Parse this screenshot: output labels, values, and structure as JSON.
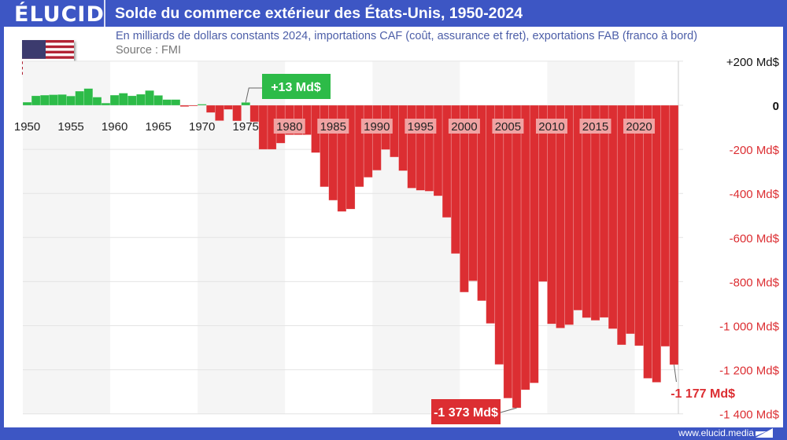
{
  "header": {
    "logo": "ÉLUCID",
    "title": "Solde du commerce extérieur des États-Unis, 1950-2024"
  },
  "subtitle": "En milliards de dollars constants 2024, importations CAF (coût, assurance et fret), exportations FAB (franco à bord)",
  "source": "Source : FMI",
  "footer": {
    "url": "www.elucid.media"
  },
  "colors": {
    "frame": "#3d56c4",
    "positive": "#2dbb48",
    "negative": "#dc2e32",
    "band": "#f5f5f5"
  },
  "flag_icon": "us-flag",
  "chart_data": {
    "type": "bar",
    "title": "Solde du commerce extérieur des États-Unis, 1950-2024",
    "xlabel": "",
    "ylabel": "",
    "ylim": [
      -1400,
      200
    ],
    "grid": true,
    "y_ticks": [
      {
        "value": 200,
        "label": "+200 Md$"
      },
      {
        "value": 0,
        "label": "0"
      },
      {
        "value": -200,
        "label": "-200 Md$"
      },
      {
        "value": -400,
        "label": "-400 Md$"
      },
      {
        "value": -600,
        "label": "-600 Md$"
      },
      {
        "value": -800,
        "label": "-800 Md$"
      },
      {
        "value": -1000,
        "label": "-1 000 Md$"
      },
      {
        "value": -1200,
        "label": "-1 200 Md$"
      },
      {
        "value": -1400,
        "label": "-1 400 Md$"
      }
    ],
    "x_ticks": [
      "1950",
      "1955",
      "1960",
      "1965",
      "1970",
      "1975",
      "1980",
      "1985",
      "1990",
      "1995",
      "2000",
      "2005",
      "2010",
      "2015",
      "2020"
    ],
    "years": [
      1950,
      1951,
      1952,
      1953,
      1954,
      1955,
      1956,
      1957,
      1958,
      1959,
      1960,
      1961,
      1962,
      1963,
      1964,
      1965,
      1966,
      1967,
      1968,
      1969,
      1970,
      1971,
      1972,
      1973,
      1974,
      1975,
      1976,
      1977,
      1978,
      1979,
      1980,
      1981,
      1982,
      1983,
      1984,
      1985,
      1986,
      1987,
      1988,
      1989,
      1990,
      1991,
      1992,
      1993,
      1994,
      1995,
      1996,
      1997,
      1998,
      1999,
      2000,
      2001,
      2002,
      2003,
      2004,
      2005,
      2006,
      2007,
      2008,
      2009,
      2010,
      2011,
      2012,
      2013,
      2014,
      2015,
      2016,
      2017,
      2018,
      2019,
      2020,
      2021,
      2022,
      2023,
      2024
    ],
    "values": [
      14,
      43,
      46,
      48,
      49,
      42,
      64,
      76,
      37,
      10,
      46,
      55,
      43,
      50,
      67,
      45,
      26,
      26,
      -6,
      -2,
      5,
      -33,
      -70,
      -19,
      -71,
      13,
      -75,
      -200,
      -200,
      -172,
      -134,
      -134,
      -134,
      -215,
      -370,
      -431,
      -482,
      -471,
      -370,
      -327,
      -295,
      -201,
      -235,
      -297,
      -376,
      -386,
      -390,
      -411,
      -509,
      -673,
      -848,
      -797,
      -887,
      -990,
      -1176,
      -1329,
      -1373,
      -1291,
      -1260,
      -800,
      -992,
      -1011,
      -996,
      -930,
      -964,
      -976,
      -963,
      -1014,
      -1087,
      -1037,
      -1091,
      -1239,
      -1257,
      -1094,
      -1177
    ],
    "annotations": [
      {
        "year": 1975,
        "label": "+13 Md$"
      },
      {
        "year": 2006,
        "label": "-1 373 Md$"
      },
      {
        "year": 2024,
        "label": "-1 177 Md$"
      }
    ]
  }
}
